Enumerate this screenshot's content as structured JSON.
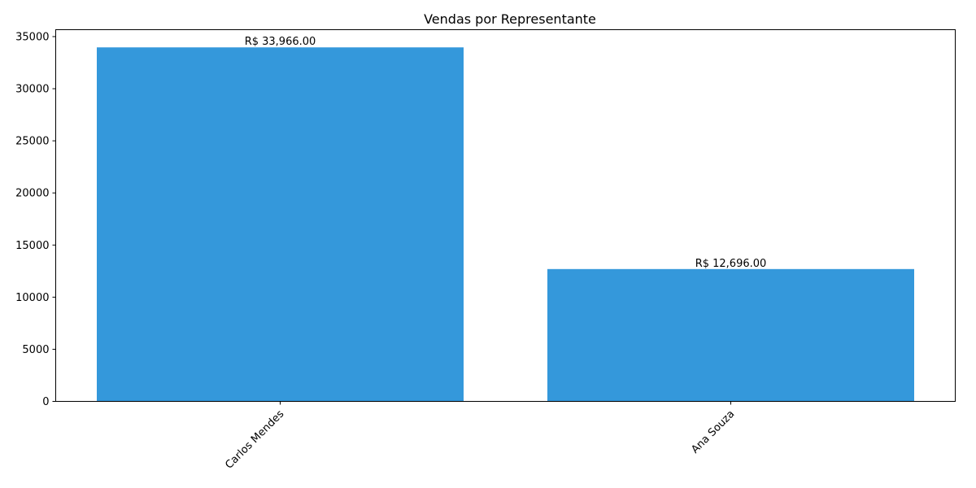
{
  "chart_data": {
    "type": "bar",
    "title": "Vendas por Representante",
    "xlabel": "",
    "ylabel": "",
    "categories": [
      "Carlos Mendes",
      "Ana Souza"
    ],
    "values": [
      33966,
      12696
    ],
    "data_labels": [
      "R$ 33,966.00",
      "R$ 12,696.00"
    ],
    "ylim": [
      0,
      35663
    ],
    "yticks": [
      0,
      5000,
      10000,
      15000,
      20000,
      25000,
      30000,
      35000
    ],
    "ytick_labels": [
      "0",
      "5000",
      "10000",
      "15000",
      "20000",
      "25000",
      "30000",
      "35000"
    ],
    "bar_color": "#3498db",
    "xtick_rotation_deg": 45,
    "grid": false,
    "legend": "none"
  }
}
